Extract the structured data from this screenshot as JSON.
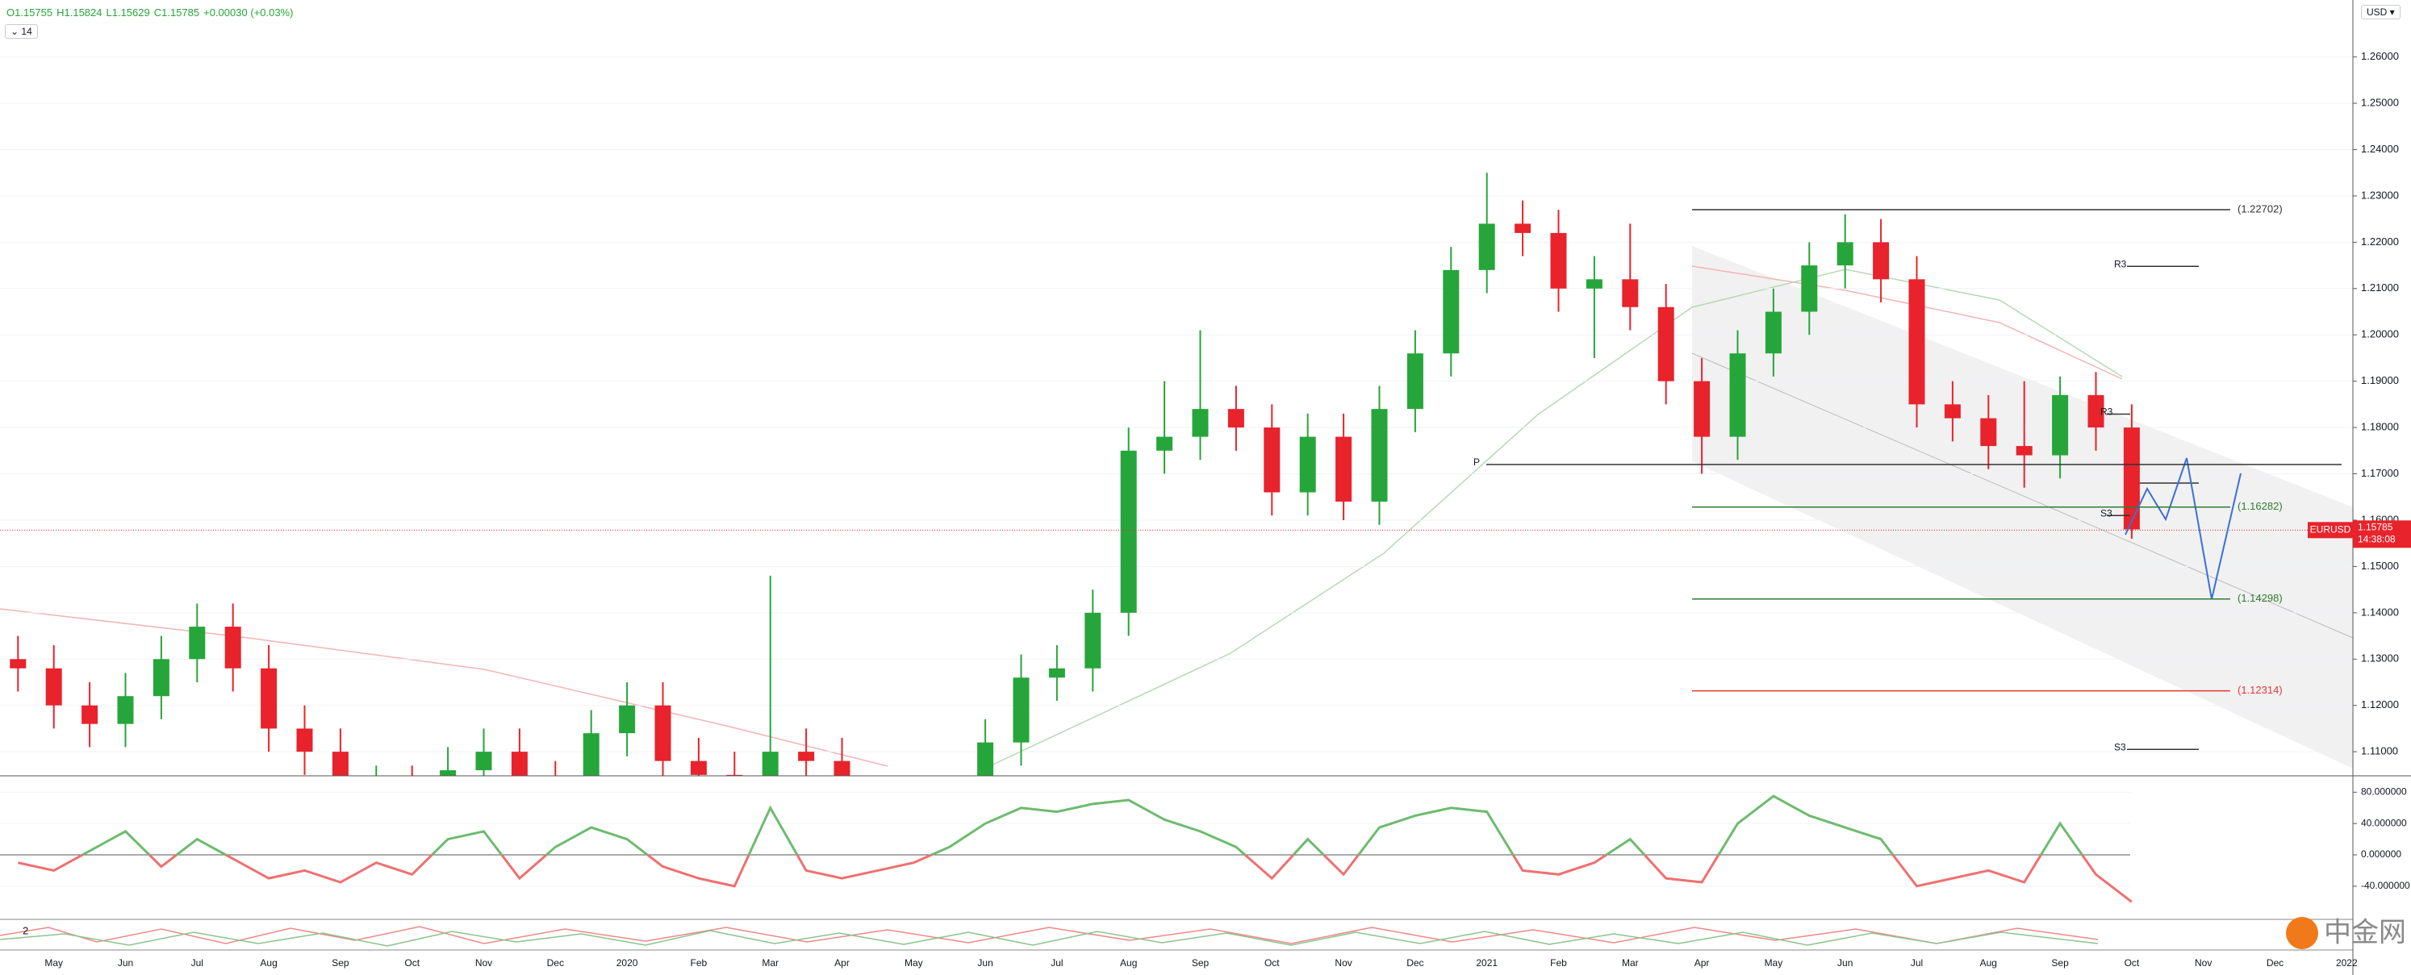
{
  "toolbar": {
    "ohlc": [
      "O1.15755",
      "H1.15824",
      "L1.15629",
      "C1.15785"
    ],
    "change": "+0.00030 (+0.03%)",
    "indicator": "14",
    "currency": "USD",
    "panel_label": "2",
    "watermark": "中金网"
  },
  "chart_data": [
    {
      "type": "candlestick",
      "symbol": "EURUSD",
      "last_price": 1.15785,
      "countdown": "14:38:08",
      "up_color": "#26a63a",
      "down_color": "#e8232b",
      "grid": true,
      "categories": [
        null,
        "May",
        null,
        "Jun",
        null,
        "Jul",
        null,
        "Aug",
        null,
        "Sep",
        null,
        "Oct",
        null,
        "Nov",
        null,
        "Dec",
        null,
        "2020",
        null,
        "Feb",
        null,
        "Mar",
        null,
        "Apr",
        null,
        "May",
        null,
        "Jun",
        null,
        "Jul",
        null,
        "Aug",
        null,
        "Sep",
        null,
        "Oct",
        null,
        "Nov",
        null,
        "Dec",
        null,
        "2021",
        null,
        "Feb",
        null,
        "Mar",
        null,
        "Apr",
        null,
        "May",
        null,
        "Jun",
        null,
        "Jul",
        null,
        "Aug",
        null,
        "Sep",
        null,
        "Oct",
        null,
        "Nov",
        null,
        "Dec",
        null,
        "2022"
      ],
      "open": [
        1.13,
        1.128,
        1.12,
        1.116,
        1.122,
        1.13,
        1.137,
        1.128,
        1.115,
        1.11,
        1.1,
        1.102,
        1.096,
        1.106,
        1.11,
        1.103,
        1.102,
        1.114,
        1.12,
        1.108,
        1.105,
        1.082,
        1.11,
        1.108,
        1.095,
        1.09,
        1.084,
        1.098,
        1.112,
        1.126,
        1.128,
        1.14,
        1.175,
        1.178,
        1.184,
        1.18,
        1.166,
        1.178,
        1.164,
        1.184,
        1.196,
        1.214,
        1.224,
        1.222,
        1.21,
        1.212,
        1.206,
        1.19,
        1.178,
        1.196,
        1.205,
        1.215,
        1.22,
        1.212,
        1.185,
        1.182,
        1.176,
        1.174,
        1.187,
        1.18,
        null,
        null,
        null,
        null,
        null,
        null
      ],
      "high": [
        1.135,
        1.133,
        1.125,
        1.127,
        1.135,
        1.142,
        1.142,
        1.133,
        1.12,
        1.115,
        1.107,
        1.107,
        1.111,
        1.115,
        1.115,
        1.108,
        1.119,
        1.125,
        1.125,
        1.113,
        1.11,
        1.148,
        1.115,
        1.113,
        1.1,
        1.095,
        1.103,
        1.117,
        1.131,
        1.133,
        1.145,
        1.18,
        1.19,
        1.201,
        1.189,
        1.185,
        1.183,
        1.183,
        1.189,
        1.201,
        1.219,
        1.235,
        1.229,
        1.227,
        1.217,
        1.224,
        1.211,
        1.195,
        1.201,
        1.21,
        1.22,
        1.226,
        1.225,
        1.217,
        1.19,
        1.187,
        1.19,
        1.191,
        1.192,
        1.185,
        null,
        null,
        null,
        null,
        null,
        null
      ],
      "low": [
        1.123,
        1.115,
        1.111,
        1.111,
        1.117,
        1.125,
        1.123,
        1.11,
        1.105,
        1.095,
        1.095,
        1.091,
        1.091,
        1.101,
        1.098,
        1.097,
        1.097,
        1.109,
        1.103,
        1.1,
        1.077,
        1.077,
        1.095,
        1.09,
        1.085,
        1.079,
        1.079,
        1.093,
        1.107,
        1.121,
        1.123,
        1.135,
        1.17,
        1.173,
        1.175,
        1.161,
        1.161,
        1.16,
        1.159,
        1.179,
        1.191,
        1.209,
        1.217,
        1.205,
        1.195,
        1.201,
        1.185,
        1.17,
        1.173,
        1.191,
        1.2,
        1.21,
        1.207,
        1.18,
        1.177,
        1.171,
        1.167,
        1.169,
        1.175,
        1.156,
        null,
        null,
        null,
        null,
        null,
        null
      ],
      "close": [
        1.128,
        1.12,
        1.116,
        1.122,
        1.13,
        1.137,
        1.128,
        1.115,
        1.11,
        1.1,
        1.102,
        1.096,
        1.106,
        1.11,
        1.103,
        1.102,
        1.114,
        1.12,
        1.108,
        1.105,
        1.082,
        1.11,
        1.108,
        1.095,
        1.09,
        1.084,
        1.098,
        1.112,
        1.126,
        1.128,
        1.14,
        1.175,
        1.178,
        1.184,
        1.18,
        1.166,
        1.178,
        1.164,
        1.184,
        1.196,
        1.214,
        1.224,
        1.222,
        1.21,
        1.212,
        1.206,
        1.19,
        1.178,
        1.196,
        1.205,
        1.215,
        1.22,
        1.212,
        1.185,
        1.182,
        1.176,
        1.174,
        1.187,
        1.18,
        1.158,
        null,
        null,
        null,
        null,
        null,
        null
      ],
      "ylim": [
        1.1048,
        1.2723
      ],
      "yticks": [
        {
          "value": 1.11,
          "label": "1.11000"
        },
        {
          "value": 1.12,
          "label": "1.12000"
        },
        {
          "value": 1.13,
          "label": "1.13000"
        },
        {
          "value": 1.14,
          "label": "1.14000"
        },
        {
          "value": 1.15,
          "label": "1.15000"
        },
        {
          "value": 1.16,
          "label": "1.16000"
        },
        {
          "value": 1.17,
          "label": "1.17000"
        },
        {
          "value": 1.18,
          "label": "1.18000"
        },
        {
          "value": 1.19,
          "label": "1.19000"
        },
        {
          "value": 1.2,
          "label": "1.20000"
        },
        {
          "value": 1.21,
          "label": "1.21000"
        },
        {
          "value": 1.22,
          "label": "1.22000"
        },
        {
          "value": 1.23,
          "label": "1.23000"
        },
        {
          "value": 1.24,
          "label": "1.24000"
        },
        {
          "value": 1.25,
          "label": "1.25000"
        },
        {
          "value": 1.26,
          "label": "1.26000"
        }
      ],
      "levels": [
        {
          "value": 1.22702,
          "label": "(1.22702)",
          "color": "#333333"
        },
        {
          "value": 1.16282,
          "label": "(1.16282)",
          "color": "#2e7d32"
        },
        {
          "value": 1.14298,
          "label": "(1.14298)",
          "color": "#2e7d32"
        },
        {
          "value": 1.12314,
          "label": "(1.12314)",
          "color": "#e53935"
        }
      ],
      "pivots": [
        {
          "label": "R3",
          "value": 1.2148
        },
        {
          "label": "R3",
          "value": 1.1829
        },
        {
          "label": "P",
          "value": 1.172
        },
        {
          "label": "S3",
          "value": 1.161
        },
        {
          "label": "S3",
          "value": 1.1105
        }
      ]
    },
    {
      "type": "line",
      "up_color": "#6dbb6f",
      "down_color": "#ef7070",
      "values": [
        -10,
        -20,
        5,
        30,
        -15,
        20,
        -5,
        -30,
        -20,
        -35,
        -10,
        -25,
        20,
        30,
        -30,
        10,
        35,
        20,
        -15,
        -30,
        -40,
        60,
        -20,
        -30,
        -20,
        -10,
        10,
        40,
        60,
        55,
        65,
        70,
        45,
        30,
        10,
        -30,
        20,
        -25,
        35,
        50,
        60,
        55,
        -20,
        -25,
        -10,
        20,
        -30,
        -35,
        40,
        75,
        50,
        35,
        20,
        -40,
        -30,
        -20,
        -35,
        40,
        -25,
        -60,
        null,
        null,
        null,
        null,
        null,
        null
      ],
      "ylim": [
        -80.3,
        96.8
      ],
      "yticks": [
        {
          "value": -40,
          "label": "-40.000000"
        },
        {
          "value": 0,
          "label": "0.000000"
        },
        {
          "value": 40,
          "label": "40.000000"
        },
        {
          "value": 80,
          "label": "80.000000"
        }
      ]
    }
  ]
}
